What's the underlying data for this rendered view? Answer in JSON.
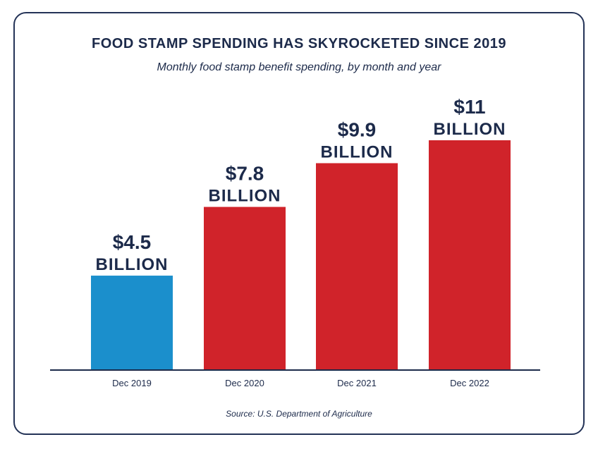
{
  "chart_data": {
    "type": "bar",
    "title": "FOOD STAMP SPENDING HAS SKYROCKETED SINCE 2019",
    "subtitle": "Monthly food stamp benefit spending, by month and year",
    "categories": [
      "Dec 2019",
      "Dec 2020",
      "Dec 2021",
      "Dec 2022"
    ],
    "values": [
      4.5,
      7.8,
      9.9,
      11
    ],
    "value_labels": [
      {
        "amount": "$4.5",
        "unit": "BILLION"
      },
      {
        "amount": "$7.8",
        "unit": "BILLION"
      },
      {
        "amount": "$9.9",
        "unit": "BILLION"
      },
      {
        "amount": "$11",
        "unit": "BILLION"
      }
    ],
    "colors": [
      "#1b8fcc",
      "#d0232a",
      "#d0232a",
      "#d0232a"
    ],
    "axis_color": "#1c2a4a",
    "xlabel": "",
    "ylabel": "",
    "ylim": [
      0,
      11
    ],
    "grid": false,
    "source": "Source: U.S. Department of Agriculture"
  }
}
